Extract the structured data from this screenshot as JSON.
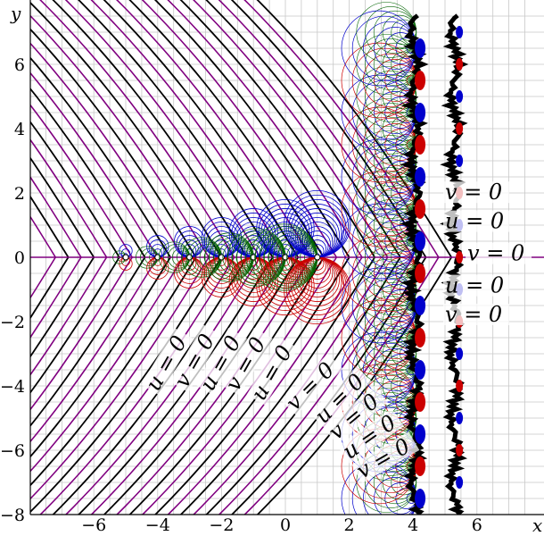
{
  "chart_data": {
    "type": "line",
    "title": "",
    "xlabel": "x",
    "ylabel": "y",
    "xlim": [
      -8.5,
      7.5
    ],
    "ylim": [
      -8,
      7.5
    ],
    "x_ticks": [
      -6,
      -4,
      -2,
      0,
      2,
      4,
      6
    ],
    "y_ticks": [
      -8,
      -6,
      -4,
      -2,
      0,
      2,
      4,
      6
    ],
    "x_tick_labels": [
      "−6",
      "−4",
      "−2",
      "0",
      "2",
      "4",
      "6"
    ],
    "y_tick_labels": [
      "−8",
      "−6",
      "−4",
      "−2",
      "0",
      "2",
      "4",
      "6"
    ],
    "grid": true,
    "grid_step": 0.5,
    "poles_on_real_axis": [
      -5,
      -4,
      -3,
      -2,
      -1,
      0,
      1
    ],
    "series_colors": {
      "u_level_curves": "#000000",
      "v_level_curves": "#800080",
      "red_contours": "#cc0000",
      "blue_contours": "#0000cc",
      "green_contours": "#006400"
    },
    "annotations": [
      {
        "text": "v = 0",
        "x": 5.0,
        "y": 1.8
      },
      {
        "text": "u = 0",
        "x": 5.0,
        "y": 0.9
      },
      {
        "text": "v = 0",
        "x": 5.7,
        "y": -0.1
      },
      {
        "text": "u = 0",
        "x": 5.0,
        "y": -1.1
      },
      {
        "text": "v = 0",
        "x": 5.0,
        "y": -2.0
      },
      {
        "text": "u = 0",
        "x": -4.0,
        "y": -4.2,
        "rotation": -60
      },
      {
        "text": "v = 0",
        "x": -3.1,
        "y": -4.1,
        "rotation": -60
      },
      {
        "text": "u = 0",
        "x": -2.3,
        "y": -4.2,
        "rotation": -60
      },
      {
        "text": "v = 0",
        "x": -1.5,
        "y": -4.2,
        "rotation": -60
      },
      {
        "text": "u = 0",
        "x": -0.7,
        "y": -4.5,
        "rotation": -60
      },
      {
        "text": "v = 0",
        "x": 0.3,
        "y": -4.8,
        "rotation": -45
      },
      {
        "text": "u = 0",
        "x": 1.2,
        "y": -5.2,
        "rotation": -45
      },
      {
        "text": "v = 0",
        "x": 1.6,
        "y": -5.7,
        "rotation": -40
      },
      {
        "text": "u = 0",
        "x": 2.0,
        "y": -6.3,
        "rotation": -35
      },
      {
        "text": "v = 0",
        "x": 2.4,
        "y": -6.9,
        "rotation": -30
      }
    ]
  }
}
